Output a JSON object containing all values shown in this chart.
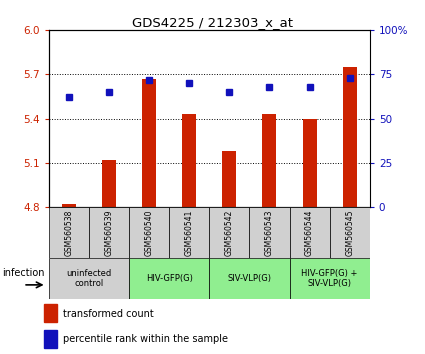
{
  "title": "GDS4225 / 212303_x_at",
  "samples": [
    "GSM560538",
    "GSM560539",
    "GSM560540",
    "GSM560541",
    "GSM560542",
    "GSM560543",
    "GSM560544",
    "GSM560545"
  ],
  "bar_values": [
    4.82,
    5.12,
    5.67,
    5.43,
    5.18,
    5.43,
    5.4,
    5.75
  ],
  "percentile_values": [
    62,
    65,
    72,
    70,
    65,
    68,
    68,
    73
  ],
  "ylim_left": [
    4.8,
    6.0
  ],
  "ylim_right": [
    0,
    100
  ],
  "yticks_left": [
    4.8,
    5.1,
    5.4,
    5.7,
    6.0
  ],
  "yticks_right": [
    0,
    25,
    50,
    75,
    100
  ],
  "bar_color": "#CC2200",
  "dot_color": "#1111BB",
  "bg_color": "#FFFFFF",
  "infection_groups": [
    {
      "label": "uninfected\ncontrol",
      "start": 0,
      "end": 2,
      "color": "#D0D0D0"
    },
    {
      "label": "HIV-GFP(G)",
      "start": 2,
      "end": 4,
      "color": "#90EE90"
    },
    {
      "label": "SIV-VLP(G)",
      "start": 4,
      "end": 6,
      "color": "#90EE90"
    },
    {
      "label": "HIV-GFP(G) +\nSIV-VLP(G)",
      "start": 6,
      "end": 8,
      "color": "#90EE90"
    }
  ],
  "xlabel": "infection",
  "legend_bar_label": "transformed count",
  "legend_dot_label": "percentile rank within the sample",
  "right_axis_color": "#1111BB",
  "left_axis_color": "#CC2200",
  "sample_box_color": "#D0D0D0",
  "bar_width": 0.35,
  "dot_size": 4
}
